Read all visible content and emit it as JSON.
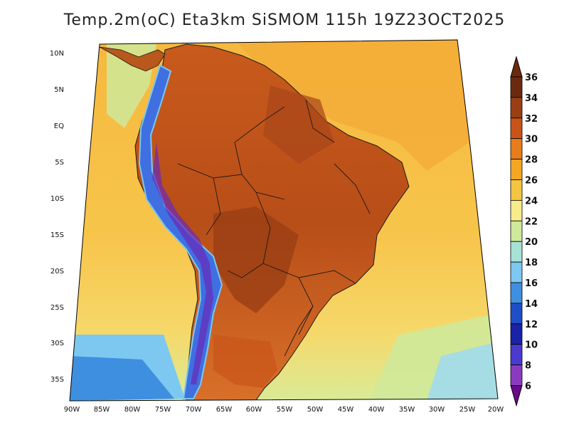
{
  "title": "Temp.2m(oC) Eta3km SiSMOM 115h 19Z23OCT2025",
  "lat_labels": [
    "10N",
    "5N",
    "EQ",
    "5S",
    "10S",
    "15S",
    "20S",
    "25S",
    "30S",
    "35S"
  ],
  "lon_labels": [
    "90W",
    "85W",
    "80W",
    "75W",
    "70W",
    "65W",
    "60W",
    "55W",
    "50W",
    "45W",
    "40W",
    "35W",
    "30W",
    "25W",
    "20W"
  ],
  "colorbar": {
    "labels": [
      "36",
      "34",
      "32",
      "30",
      "28",
      "26",
      "24",
      "22",
      "20",
      "18",
      "16",
      "14",
      "12",
      "10",
      "8",
      "6"
    ],
    "colors": [
      "#6b2a10",
      "#9a3f14",
      "#c9541a",
      "#e87d1c",
      "#f5a623",
      "#f5c542",
      "#f7eb8a",
      "#cfe99a",
      "#a6e3d4",
      "#7cc8f0",
      "#3f8fe0",
      "#1f4fc8",
      "#1a22a8",
      "#4a3ad0",
      "#8a3ac0",
      "#6a0a8a"
    ]
  },
  "colors": {
    "ocean": "#f7c04a",
    "ocean_warm": "#f3ad38",
    "ocean_cool": "#f7e27a",
    "ocean_cold": "#a6dde4",
    "land": "#d26a22",
    "land_hot": "#9a3f14",
    "andes": "#3f6fe0",
    "andes_cold": "#6a2ab8"
  }
}
